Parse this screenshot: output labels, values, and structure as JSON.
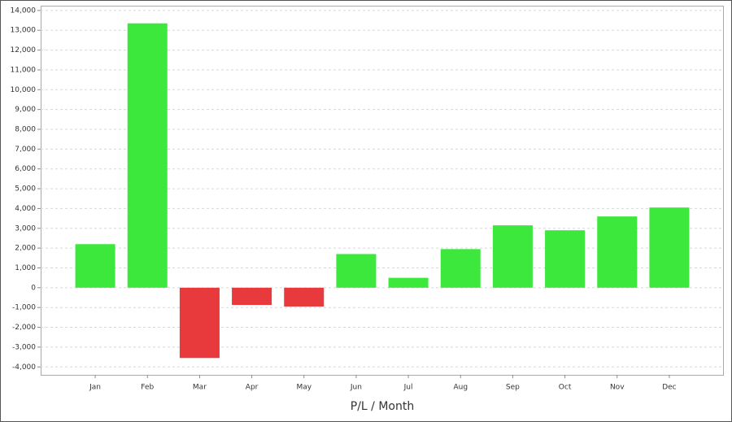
{
  "chart_data": {
    "type": "bar",
    "x_label": "P/L / Month",
    "categories": [
      "Jan",
      "Feb",
      "Mar",
      "Apr",
      "May",
      "Jun",
      "Jul",
      "Aug",
      "Sep",
      "Oct",
      "Nov",
      "Dec"
    ],
    "values": [
      2200,
      13350,
      -3550,
      -870,
      -950,
      1700,
      500,
      1950,
      3150,
      2900,
      3600,
      4050
    ],
    "positive_color": "#3de83d",
    "negative_color": "#e8393d",
    "ylim": [
      -4400,
      14200
    ],
    "yticks": [
      {
        "value": -4000,
        "label": "-4,000"
      },
      {
        "value": -3000,
        "label": "-3,000"
      },
      {
        "value": -2000,
        "label": "-2,000"
      },
      {
        "value": -1000,
        "label": "-1,000"
      },
      0,
      {
        "value": 1000,
        "label": "1,000"
      },
      {
        "value": 2000,
        "label": "2,000"
      },
      {
        "value": 3000,
        "label": "3,000"
      },
      {
        "value": 4000,
        "label": "4,000"
      },
      {
        "value": 5000,
        "label": "5,000"
      },
      {
        "value": 6000,
        "label": "6,000"
      },
      {
        "value": 7000,
        "label": "7,000"
      },
      {
        "value": 8000,
        "label": "8,000"
      },
      {
        "value": 9000,
        "label": "9,000"
      },
      {
        "value": 10000,
        "label": "10,000"
      },
      {
        "value": 11000,
        "label": "11,000"
      },
      {
        "value": 12000,
        "label": "12,000"
      },
      {
        "value": 13000,
        "label": "13,000"
      },
      {
        "value": 14000,
        "label": "14,000"
      }
    ],
    "grid": true
  }
}
